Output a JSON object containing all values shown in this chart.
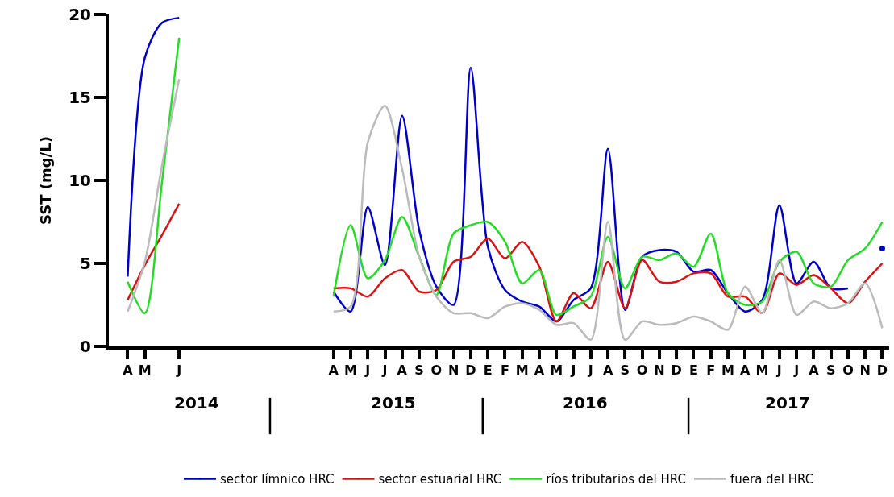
{
  "chart_data": {
    "type": "line",
    "ylabel": "SST (mg/L)",
    "categories": [
      "A",
      "M",
      null,
      "J",
      null,
      null,
      null,
      null,
      null,
      null,
      null,
      null,
      "A",
      "M",
      "J",
      "J",
      "A",
      "S",
      "O",
      "N",
      "D",
      "E",
      "F",
      "M",
      "A",
      "M",
      "J",
      "J",
      "A",
      "S",
      "O",
      "N",
      "D",
      "E",
      "F",
      "M",
      "A",
      "M",
      "J",
      "J",
      "A",
      "S",
      "O",
      "N",
      "D"
    ],
    "series": [
      {
        "name": "sector límnico HRC",
        "color": "#0000cc",
        "values": [
          4.2,
          17.4,
          19.5,
          19.8,
          null,
          null,
          null,
          null,
          null,
          null,
          null,
          null,
          3.3,
          2.1,
          8.4,
          4.9,
          13.9,
          7.0,
          3.6,
          2.5,
          16.8,
          6.0,
          3.4,
          2.7,
          2.4,
          1.5,
          2.8,
          3.5,
          11.9,
          2.2,
          5.4,
          5.8,
          5.7,
          4.5,
          4.6,
          3.2,
          2.1,
          2.8,
          8.5,
          3.8,
          5.1,
          3.5,
          3.5,
          null,
          5.9
        ]
      },
      {
        "name": "sector estuarial HRC",
        "color": "#dd1111",
        "values": [
          2.8,
          4.9,
          6.7,
          8.6,
          null,
          null,
          null,
          null,
          null,
          null,
          null,
          null,
          3.5,
          3.5,
          3.0,
          4.1,
          4.6,
          3.3,
          3.4,
          5.1,
          5.4,
          6.5,
          5.3,
          6.3,
          4.8,
          1.5,
          3.2,
          2.3,
          5.1,
          2.3,
          5.2,
          3.9,
          3.9,
          4.4,
          4.4,
          3.0,
          3.0,
          2.0,
          4.4,
          3.7,
          4.3,
          3.5,
          2.6,
          3.9,
          5.0
        ]
      },
      {
        "name": "ríos tributarios del HRC",
        "color": "#22dd22",
        "values": [
          3.9,
          2.0,
          9.9,
          18.6,
          null,
          null,
          null,
          null,
          null,
          null,
          null,
          null,
          3.0,
          7.3,
          4.1,
          5.2,
          7.8,
          5.4,
          3.1,
          6.8,
          7.3,
          7.5,
          6.3,
          3.8,
          4.6,
          1.9,
          2.4,
          3.0,
          6.6,
          3.5,
          5.4,
          5.2,
          5.6,
          4.8,
          6.8,
          3.2,
          2.5,
          2.7,
          5.1,
          5.7,
          3.8,
          3.6,
          5.2,
          5.9,
          7.5
        ]
      },
      {
        "name": "fuera del HRC",
        "color": "#bbbbbb",
        "values": [
          2.1,
          5.1,
          10.9,
          16.1,
          null,
          null,
          null,
          null,
          null,
          null,
          null,
          null,
          2.1,
          2.4,
          12.3,
          14.5,
          10.7,
          5.4,
          3.0,
          2.0,
          2.0,
          1.7,
          2.4,
          2.6,
          2.2,
          1.3,
          1.4,
          0.4,
          7.5,
          0.4,
          1.5,
          1.3,
          1.4,
          1.8,
          1.5,
          1.0,
          3.6,
          2.0,
          5.2,
          1.9,
          2.7,
          2.3,
          2.6,
          3.8,
          1.1
        ]
      }
    ],
    "ylim": [
      0,
      20
    ],
    "yticks": [
      0,
      5,
      10,
      15,
      20
    ],
    "legend": "bottom",
    "annotations": [
      "2014",
      "2015",
      "2016",
      "2017"
    ]
  }
}
